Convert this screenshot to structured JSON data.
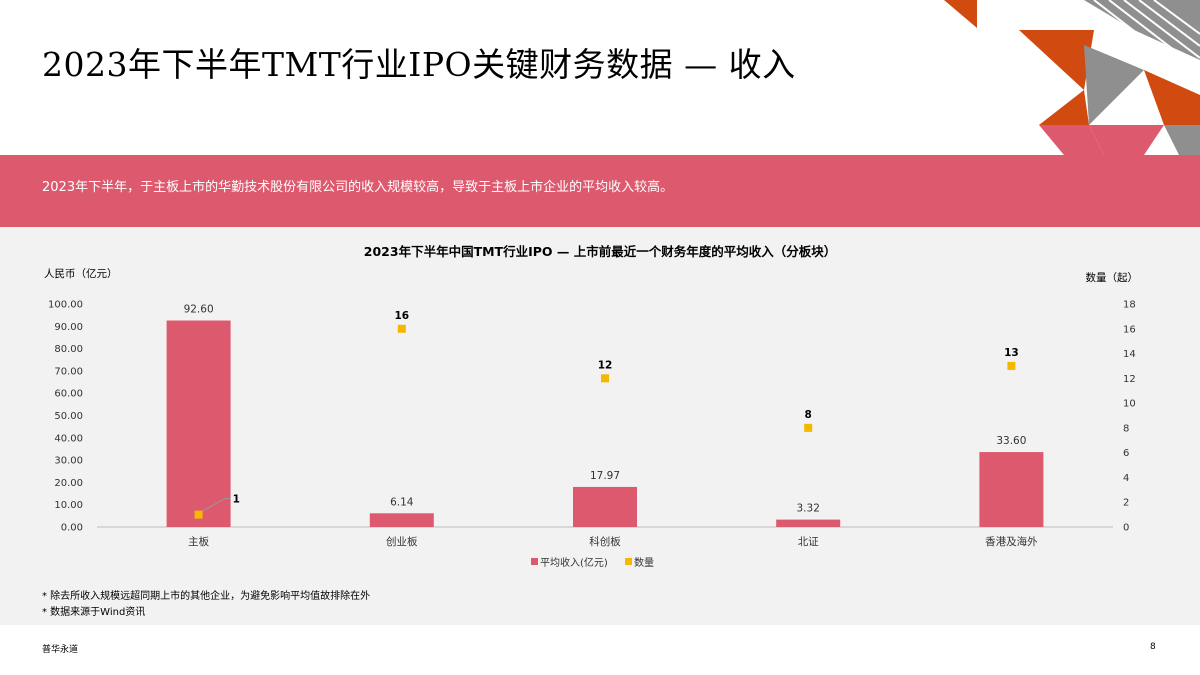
{
  "page": {
    "title": "2023年下半年TMT行业IPO关键财务数据 — 收入",
    "banner_text": "2023年下半年，于主板上市的华勤技术股份有限公司的收入规模较高，导致于主板上市企业的平均收入较高。",
    "notes": [
      "* 除去所收入规模远超同期上市的其他企业，为避免影响平均值故排除在外",
      "* 数据来源于Wind资讯"
    ],
    "footer_left": "普华永道",
    "page_number": "8"
  },
  "colors": {
    "bar": "#dd5a6e",
    "marker": "#f5b800",
    "banner": "#dd5a6e",
    "panel": "#f2f2f2",
    "deco_orange": "#d14a0f",
    "deco_pink": "#dd5a6e",
    "deco_gray": "#8f8f8f"
  },
  "chart_data": {
    "type": "bar",
    "title": "2023年下半年中国TMT行业IPO — 上市前最近一个财务年度的平均收入（分板块）",
    "ylabel_left": "人民币（亿元）",
    "ylabel_right": "数量（起）",
    "categories": [
      "主板",
      "创业板",
      "科创板",
      "北证",
      "香港及海外"
    ],
    "series": [
      {
        "name": "平均收入(亿元)",
        "kind": "bar",
        "axis": "left",
        "values": [
          92.6,
          6.14,
          17.97,
          3.32,
          33.6
        ],
        "labels": [
          "92.60",
          "6.14",
          "17.97",
          "3.32",
          "33.60"
        ]
      },
      {
        "name": "数量",
        "kind": "marker",
        "axis": "right",
        "values": [
          1,
          16,
          12,
          8,
          13
        ],
        "labels": [
          "1",
          "16",
          "12",
          "8",
          "13"
        ]
      }
    ],
    "ylim_left": [
      0,
      100
    ],
    "ylim_right": [
      0,
      18
    ],
    "yticks_left": [
      "0.00",
      "10.00",
      "20.00",
      "30.00",
      "40.00",
      "50.00",
      "60.00",
      "70.00",
      "80.00",
      "90.00",
      "100.00"
    ],
    "yticks_right": [
      "0",
      "2",
      "4",
      "6",
      "8",
      "10",
      "12",
      "14",
      "16",
      "18"
    ],
    "grid": false,
    "legend_position": "bottom"
  }
}
